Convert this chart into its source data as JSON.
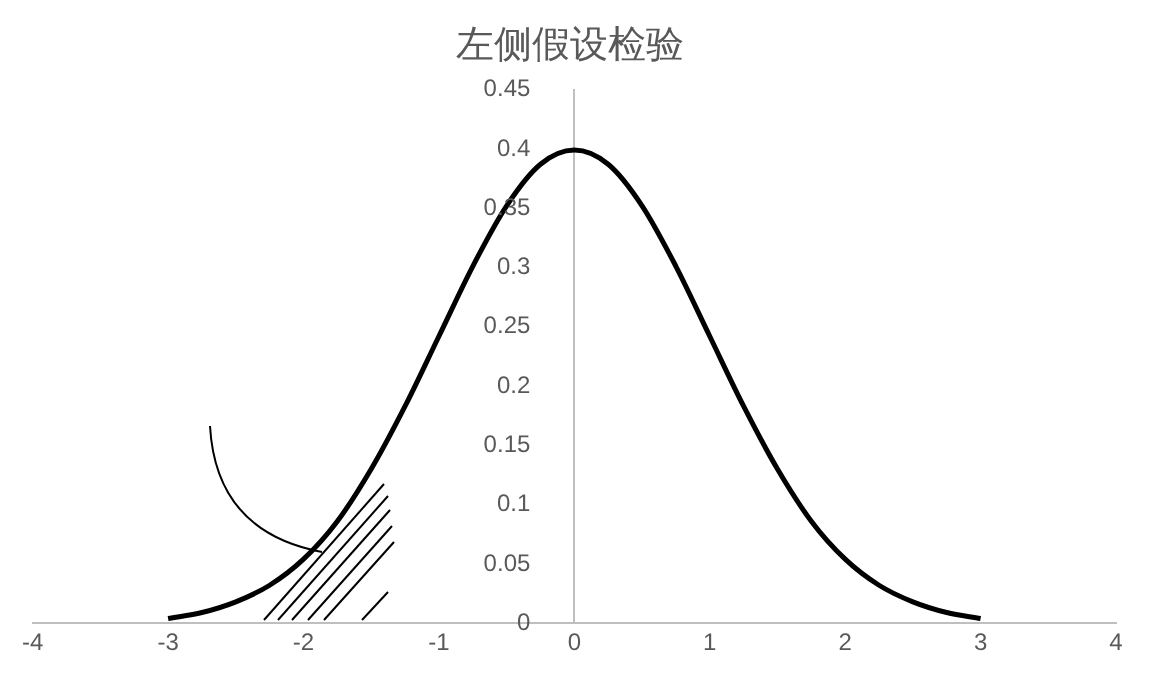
{
  "chart_data": {
    "type": "line",
    "title": "左侧假设检验",
    "x": [
      -3,
      -2.75,
      -2.5,
      -2.25,
      -2,
      -1.75,
      -1.5,
      -1.25,
      -1,
      -0.75,
      -0.5,
      -0.25,
      0,
      0.25,
      0.5,
      0.75,
      1,
      1.25,
      1.5,
      1.75,
      2,
      2.25,
      2.5,
      2.75,
      3
    ],
    "series": [
      {
        "color": "#000000",
        "values": [
          0.004,
          0.009,
          0.018,
          0.032,
          0.054,
          0.086,
          0.13,
          0.183,
          0.242,
          0.301,
          0.352,
          0.387,
          0.399,
          0.387,
          0.352,
          0.301,
          0.242,
          0.183,
          0.13,
          0.086,
          0.054,
          0.032,
          0.018,
          0.009,
          0.004
        ]
      }
    ],
    "xlim": [
      -4,
      4
    ],
    "xticks": [
      -4,
      -3,
      -2,
      -1,
      0,
      1,
      2,
      3,
      4
    ],
    "ylim": [
      0,
      0.45
    ],
    "yticks": [
      0,
      0.05,
      0.1,
      0.15,
      0.2,
      0.25,
      0.3,
      0.35,
      0.4,
      0.45
    ],
    "grid": false,
    "legend": false,
    "marker": "none",
    "line_style": "solid"
  }
}
